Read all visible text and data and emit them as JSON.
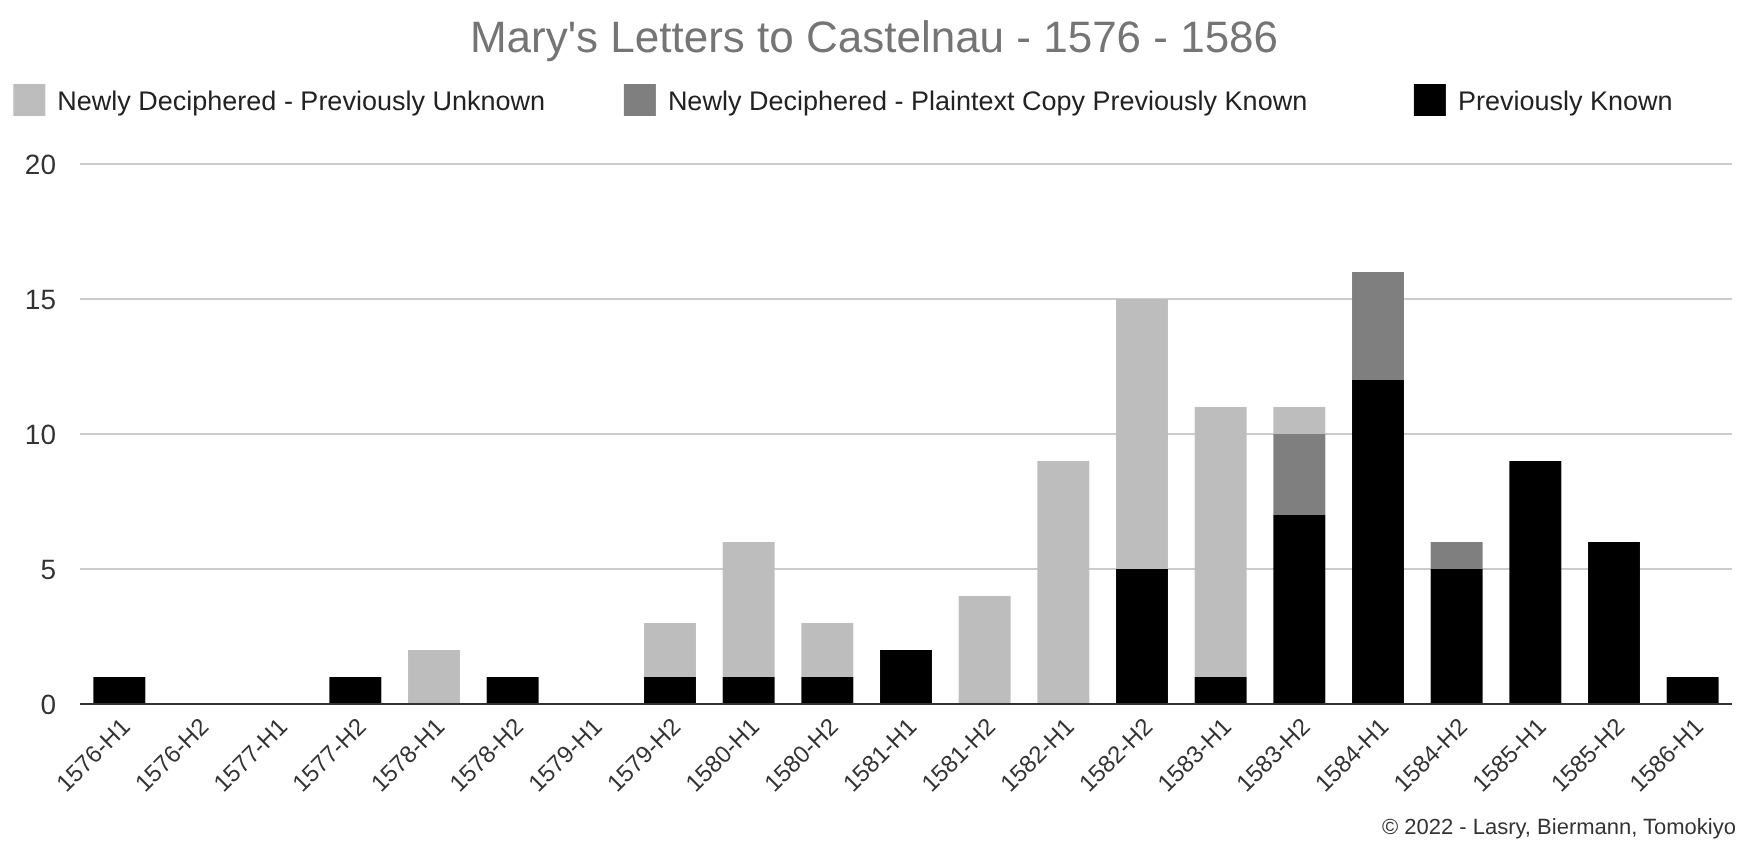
{
  "chart_data": {
    "type": "bar",
    "title": "Mary's Letters to Castelnau - 1576 - 1586",
    "stacked": true,
    "grid": "y",
    "legend": "top",
    "categories": [
      "1576-H1",
      "1576-H2",
      "1577-H1",
      "1577-H2",
      "1578-H1",
      "1578-H2",
      "1579-H1",
      "1579-H2",
      "1580-H1",
      "1580-H2",
      "1581-H1",
      "1581-H2",
      "1582-H1",
      "1582-H2",
      "1583-H1",
      "1583-H2",
      "1584-H1",
      "1584-H2",
      "1585-H1",
      "1585-H2",
      "1586-H1"
    ],
    "series": [
      {
        "name": "Previously Known",
        "color": "#000000",
        "values": [
          1,
          0,
          0,
          1,
          0,
          1,
          0,
          1,
          1,
          1,
          2,
          0,
          0,
          5,
          1,
          7,
          12,
          5,
          9,
          6,
          1
        ]
      },
      {
        "name": "Newly Deciphered - Plaintext Copy Previously Known",
        "color": "#7f7f7f",
        "values": [
          0,
          0,
          0,
          0,
          0,
          0,
          0,
          0,
          0,
          0,
          0,
          0,
          0,
          0,
          0,
          3,
          4,
          1,
          0,
          0,
          0
        ]
      },
      {
        "name": "Newly Deciphered - Previously Unknown",
        "color": "#bdbdbd",
        "values": [
          0,
          0,
          0,
          0,
          2,
          0,
          0,
          2,
          5,
          2,
          0,
          4,
          9,
          10,
          10,
          1,
          0,
          0,
          0,
          0,
          0
        ]
      }
    ],
    "ylim": [
      0,
      20
    ],
    "yticks": [
      0,
      5,
      10,
      15,
      20
    ],
    "annotations": [
      "© 2022 - Lasry, Biermann, Tomokiyo"
    ]
  }
}
